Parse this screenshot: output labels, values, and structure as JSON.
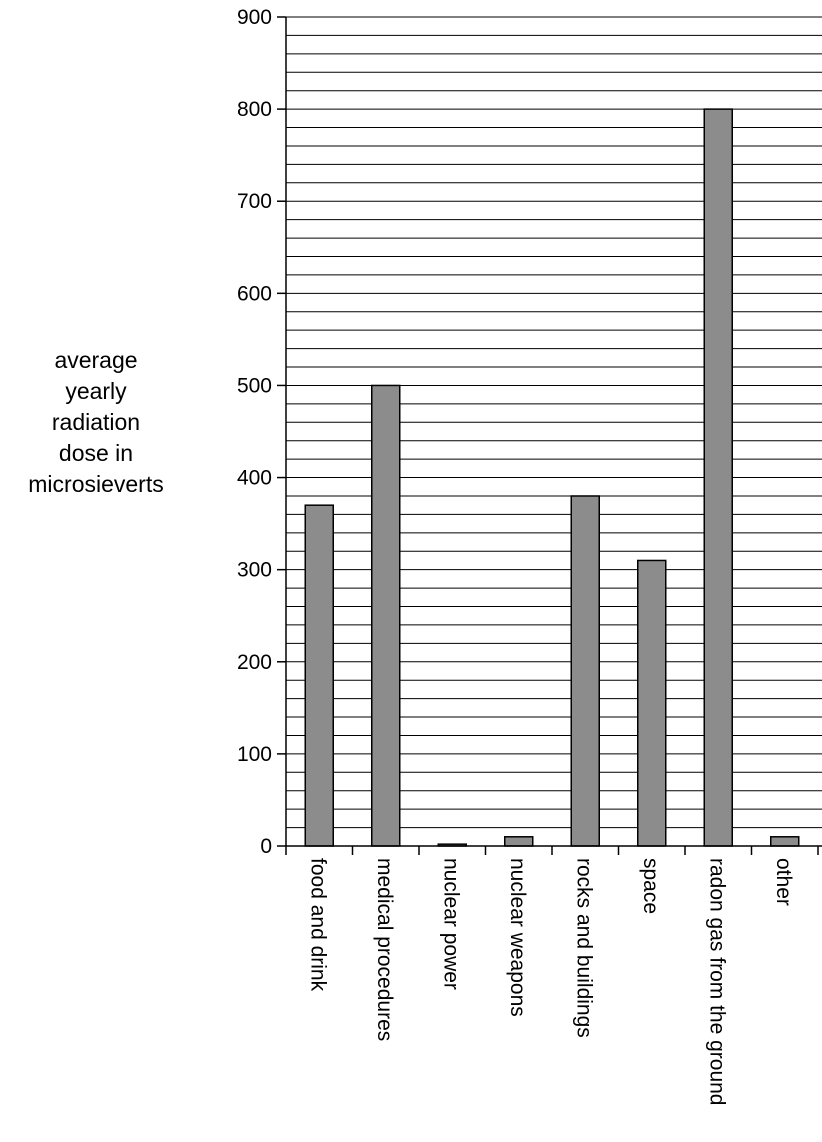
{
  "chart_data": {
    "type": "bar",
    "title": "",
    "xlabel": "",
    "ylabel_lines": [
      "average",
      "yearly",
      "radiation",
      "dose in",
      "microsieverts"
    ],
    "categories": [
      "food and drink",
      "medical procedures",
      "nuclear power",
      "nuclear weapons",
      "rocks and buildings",
      "space",
      "radon gas from the ground",
      "other"
    ],
    "values": [
      370,
      500,
      2,
      10,
      380,
      310,
      800,
      10
    ],
    "ylim": [
      0,
      900
    ],
    "y_ticks": [
      0,
      100,
      200,
      300,
      400,
      500,
      600,
      700,
      800,
      900
    ],
    "minor_grid_step": 20,
    "grid": true,
    "colors": {
      "bar_fill": "#8c8c8c",
      "bar_stroke": "#000000",
      "grid": "#000000"
    }
  }
}
